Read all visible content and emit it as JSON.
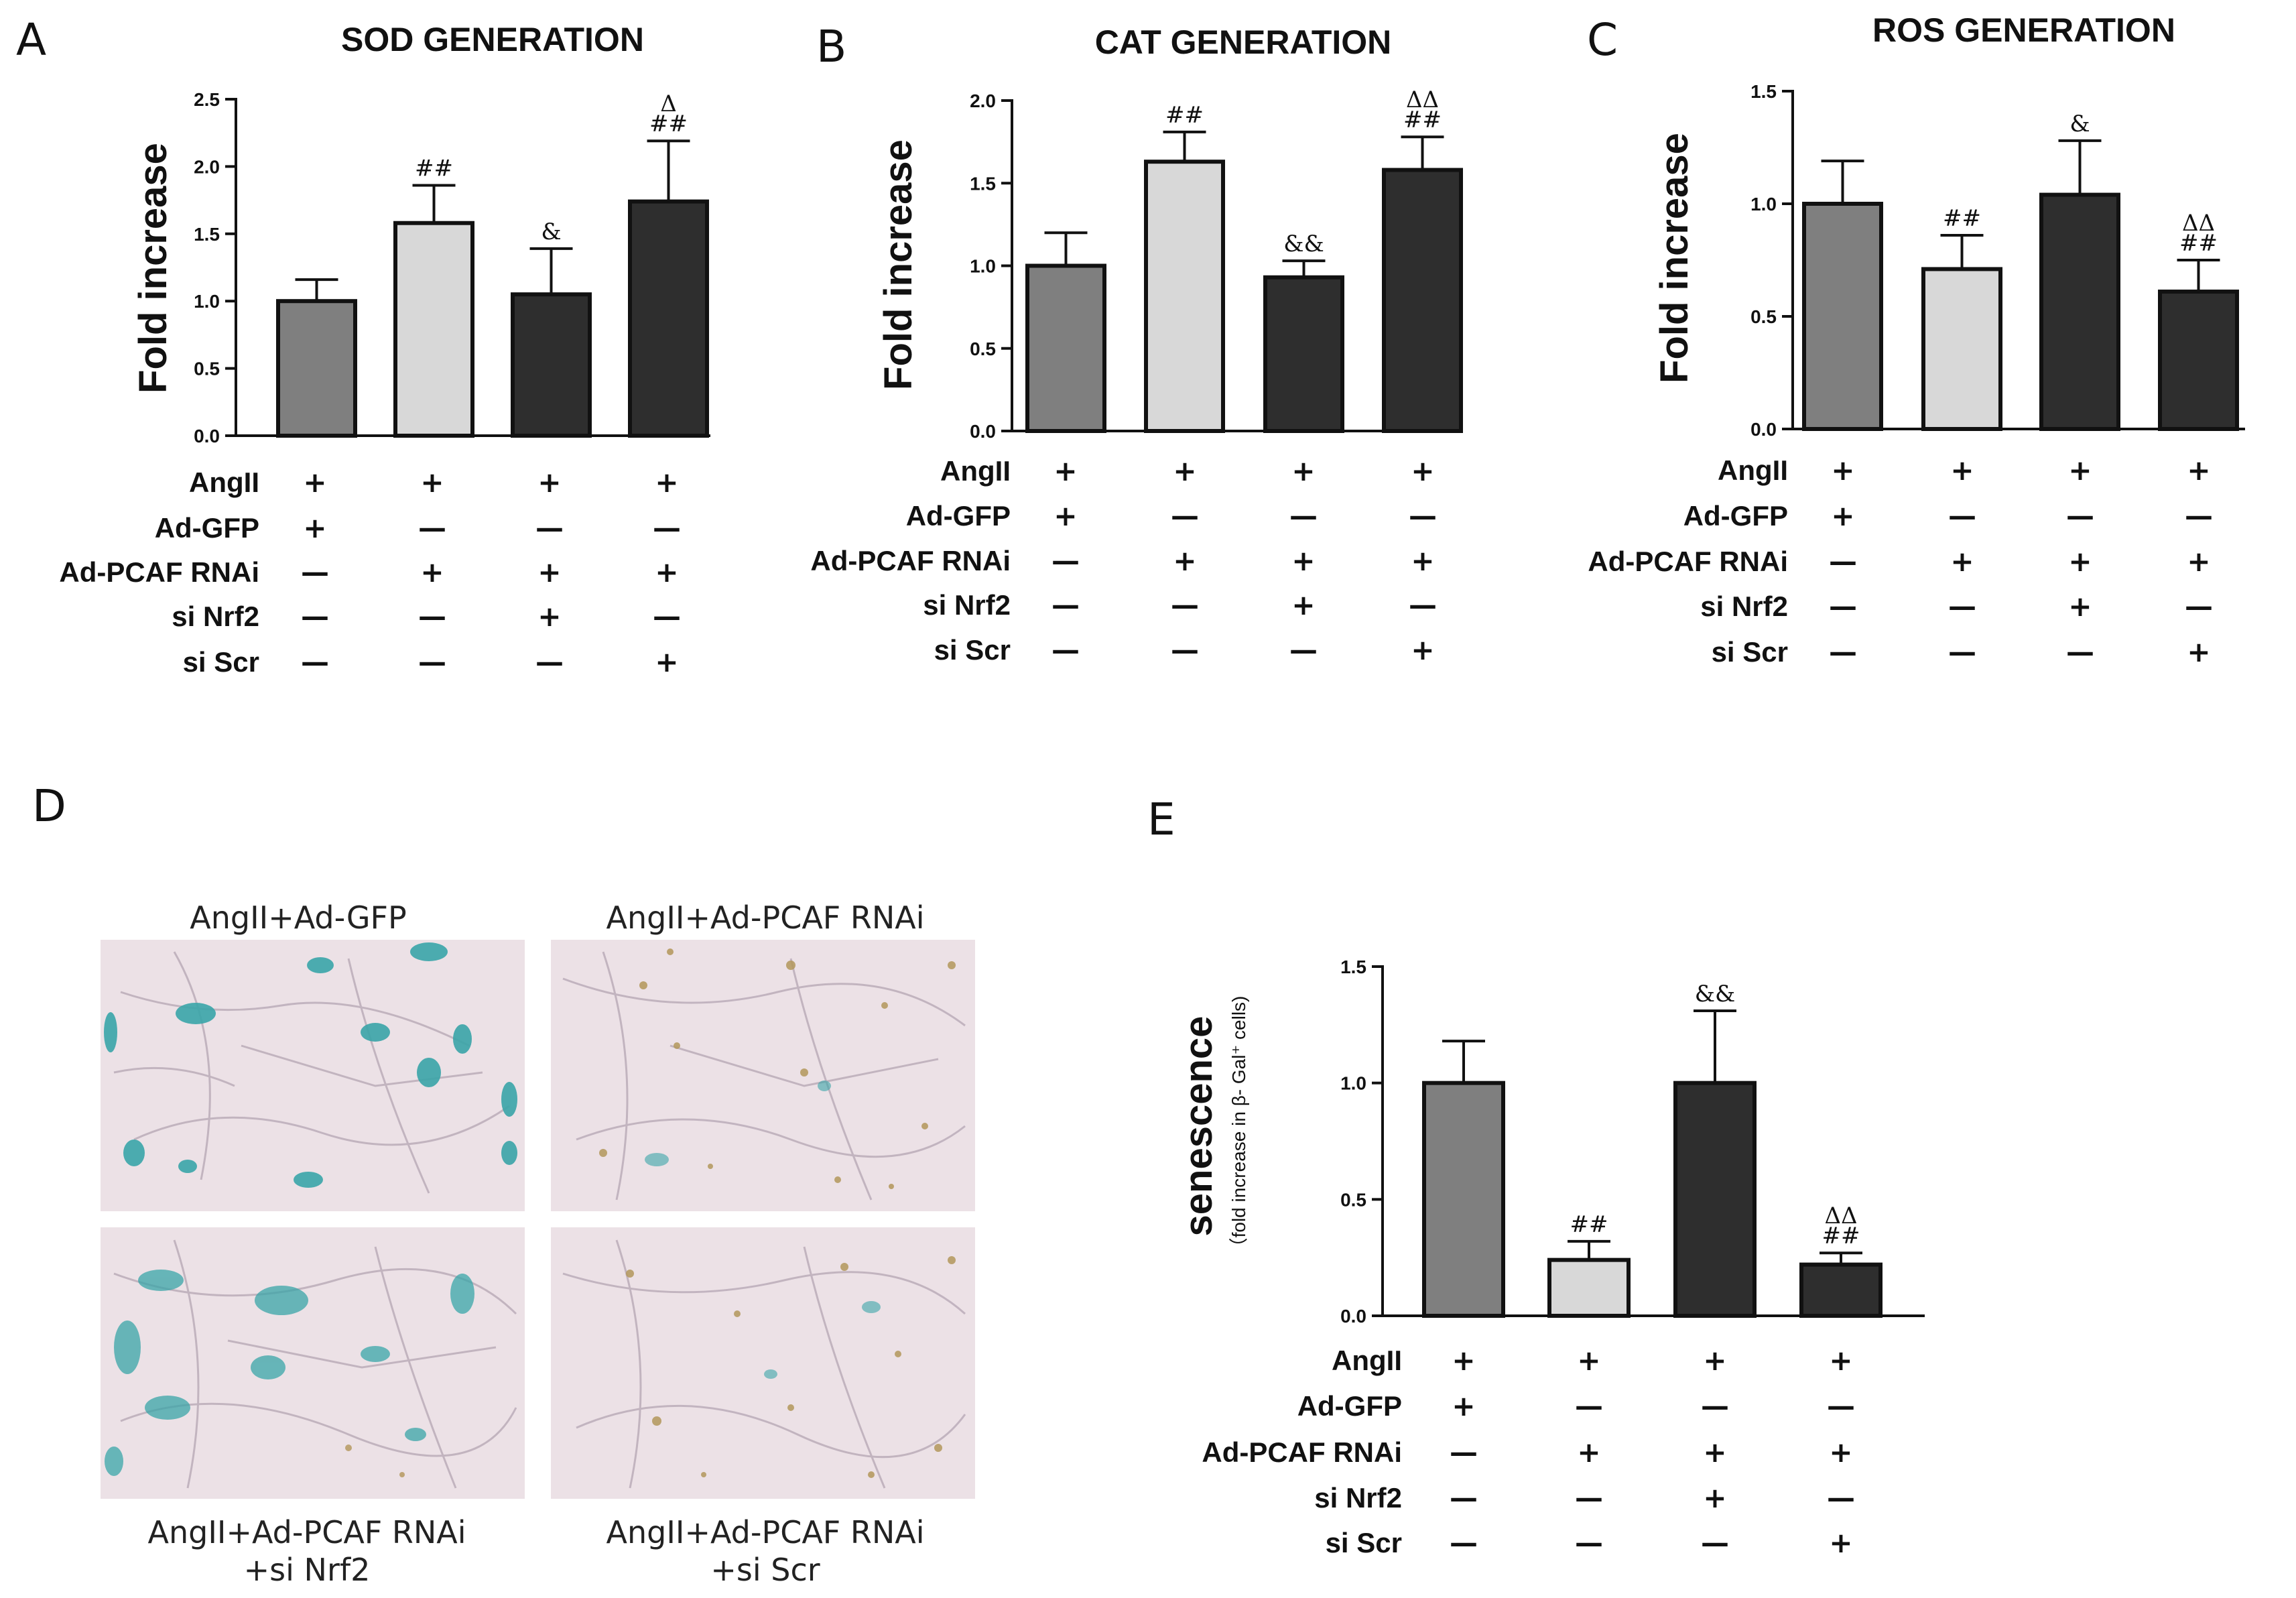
{
  "colors": {
    "bar_fills": [
      "#7f7f7f",
      "#d8d8d8",
      "#2e2e2e",
      "#2e2e2e"
    ],
    "micro_bg": "#ece1e6",
    "stain_blue": "#3aa5a8",
    "debris_brown": "#b3965a"
  },
  "row_labels": [
    "AngII",
    "Ad-GFP",
    "Ad-PCAF RNAi",
    "si Nrf2",
    "si Scr"
  ],
  "condition_matrix": [
    [
      "+",
      "+",
      "+",
      "+"
    ],
    [
      "+",
      "—",
      "—",
      "—"
    ],
    [
      "—",
      "+",
      "+",
      "+"
    ],
    [
      "—",
      "—",
      "+",
      "—"
    ],
    [
      "—",
      "—",
      "—",
      "+"
    ]
  ],
  "panel_d": {
    "letter": "D",
    "captions": {
      "tl": "AngII+Ad-GFP",
      "tr": "AngII+Ad-PCAF RNAi",
      "bl_line1": "AngII+Ad-PCAF RNAi",
      "bl_line2": "+si Nrf2",
      "br_line1": "AngII+Ad-PCAF RNAi",
      "br_line2": "+si Scr"
    }
  },
  "chart_data": [
    {
      "type": "bar",
      "panel": "A",
      "title": "SOD GENERATION",
      "ylabel": "Fold increase",
      "ylabel_sub": "",
      "ylim": [
        0,
        2.5
      ],
      "yticks": [
        0.0,
        0.5,
        1.0,
        1.5,
        2.0,
        2.5
      ],
      "ytick_labels": [
        "0.0",
        "0.5",
        "1.0",
        "1.5",
        "2.0",
        "2.5"
      ],
      "values": [
        1.0,
        1.58,
        1.05,
        1.74
      ],
      "errors": [
        0.16,
        0.28,
        0.34,
        0.45
      ],
      "significance": [
        [],
        [
          "##"
        ],
        [
          "&"
        ],
        [
          "##",
          "Δ"
        ]
      ]
    },
    {
      "type": "bar",
      "panel": "B",
      "title": "CAT GENERATION",
      "ylabel": "Fold increase",
      "ylabel_sub": "",
      "ylim": [
        0,
        2.0
      ],
      "yticks": [
        0.0,
        0.5,
        1.0,
        1.5,
        2.0
      ],
      "ytick_labels": [
        "0.0",
        "0.5",
        "1.0",
        "1.5",
        "2.0"
      ],
      "values": [
        1.0,
        1.63,
        0.93,
        1.58
      ],
      "errors": [
        0.2,
        0.18,
        0.1,
        0.2
      ],
      "significance": [
        [],
        [
          "##"
        ],
        [
          "&&"
        ],
        [
          "##",
          "ΔΔ"
        ]
      ]
    },
    {
      "type": "bar",
      "panel": "C",
      "title": "ROS GENERATION",
      "ylabel": "Fold increase",
      "ylabel_sub": "",
      "ylim": [
        0,
        1.5
      ],
      "yticks": [
        0.0,
        0.5,
        1.0,
        1.5
      ],
      "ytick_labels": [
        "0.0",
        "0.5",
        "1.0",
        "1.5"
      ],
      "values": [
        1.0,
        0.71,
        1.04,
        0.61
      ],
      "errors": [
        0.19,
        0.15,
        0.24,
        0.14
      ],
      "significance": [
        [],
        [
          "##"
        ],
        [
          "&"
        ],
        [
          "##",
          "ΔΔ"
        ]
      ]
    },
    {
      "type": "bar",
      "panel": "E",
      "title": "",
      "ylabel": "senescence",
      "ylabel_sub": "（fold increase in β- Gal⁺ cells)",
      "ylim": [
        0,
        1.5
      ],
      "yticks": [
        0.0,
        0.5,
        1.0,
        1.5
      ],
      "ytick_labels": [
        "0.0",
        "0.5",
        "1.0",
        "1.5"
      ],
      "values": [
        1.0,
        0.24,
        1.0,
        0.22
      ],
      "errors": [
        0.18,
        0.08,
        0.31,
        0.05
      ],
      "significance": [
        [],
        [
          "##"
        ],
        [
          "&&"
        ],
        [
          "##",
          "ΔΔ"
        ]
      ]
    }
  ]
}
